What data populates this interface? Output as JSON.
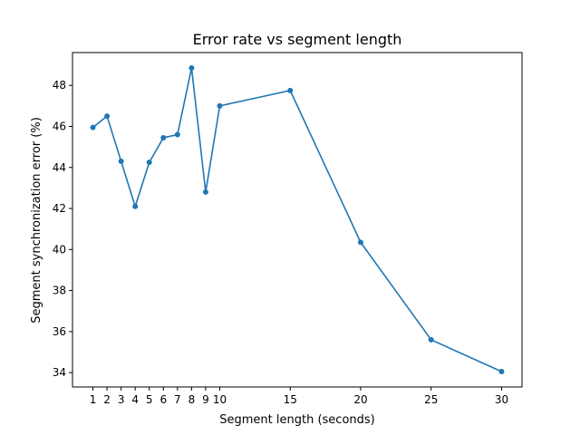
{
  "chart_data": {
    "type": "line",
    "title": "Error rate vs segment length",
    "xlabel": "Segment length (seconds)",
    "ylabel": "Segment synchronization error (%)",
    "x": [
      1,
      2,
      3,
      4,
      5,
      6,
      7,
      8,
      9,
      10,
      15,
      20,
      25,
      30
    ],
    "series": [
      {
        "values": [
          45.95,
          46.5,
          44.3,
          42.1,
          44.25,
          45.45,
          45.6,
          48.85,
          42.8,
          47.0,
          47.75,
          40.35,
          35.6,
          34.05
        ]
      }
    ],
    "xlim": [
      -0.45,
      31.45
    ],
    "ylim": [
      33.3,
      49.6
    ],
    "xticks": [
      "1",
      "2",
      "3",
      "4",
      "5",
      "6",
      "7",
      "8",
      "9",
      "10",
      "15",
      "20",
      "25",
      "30"
    ],
    "yticks": [
      "34",
      "36",
      "38",
      "40",
      "42",
      "44",
      "46",
      "48"
    ],
    "grid": false,
    "line_color": "#1f77b4"
  }
}
